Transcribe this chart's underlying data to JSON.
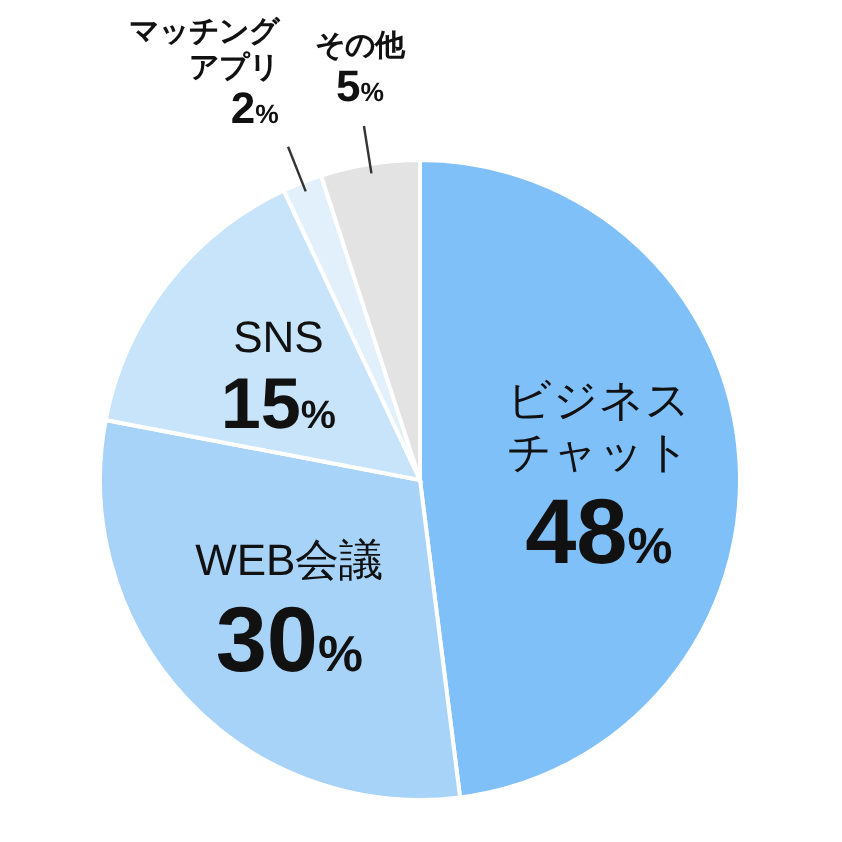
{
  "chart_data": {
    "type": "pie",
    "categories": [
      "ビジネスチャット",
      "WEB会議",
      "SNS",
      "マッチングアプリ",
      "その他"
    ],
    "values": [
      48,
      30,
      15,
      2,
      5
    ],
    "colors": [
      "#80c0f8",
      "#a8d3f8",
      "#c8e4fa",
      "#e2f0fb",
      "#e3e3e3"
    ],
    "value_labels": [
      "48%",
      "30%",
      "15%",
      "2%",
      "5%"
    ]
  }
}
